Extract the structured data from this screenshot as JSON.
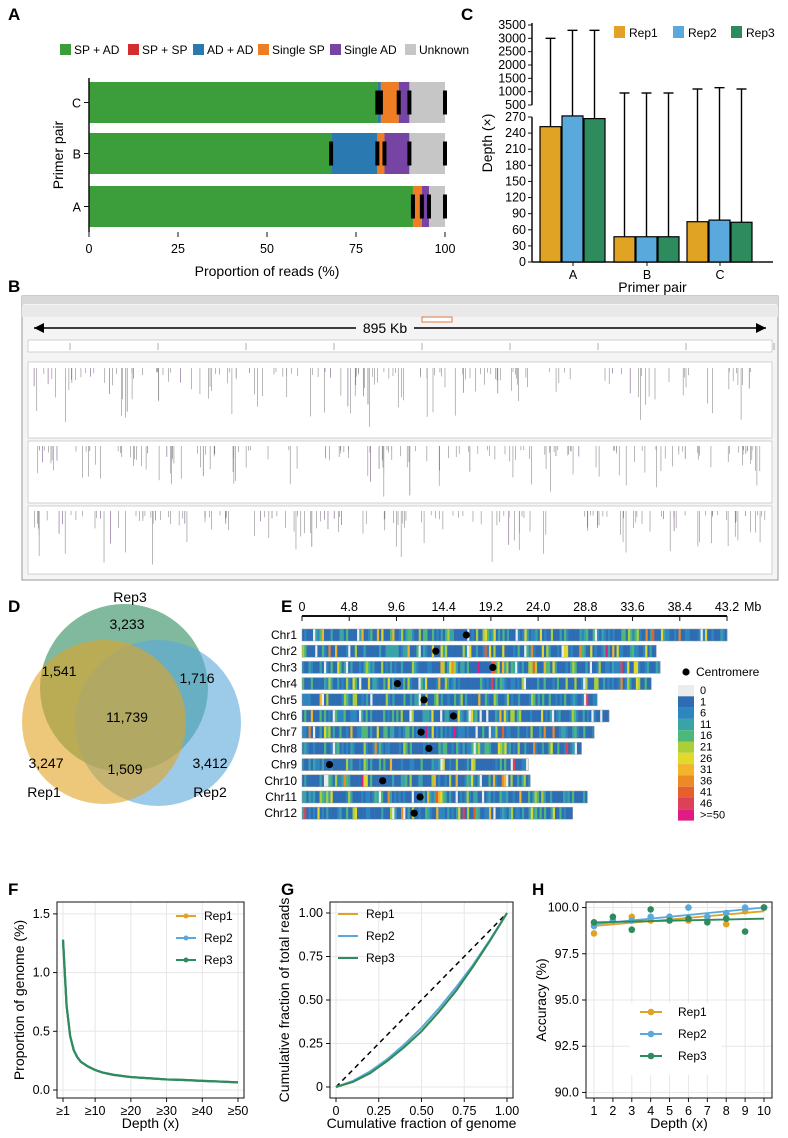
{
  "panel_labels": [
    "A",
    "B",
    "C",
    "D",
    "E",
    "F",
    "G",
    "H"
  ],
  "colors": {
    "sp_ad": "#3b9e3b",
    "sp_sp": "#d42d2d",
    "ad_ad": "#2b79b1",
    "single_sp": "#ee7d23",
    "single_ad": "#7645a3",
    "unknown": "#c6c6c6",
    "rep1": "#e1a323",
    "rep2": "#5aa9dc",
    "rep3": "#2d8b5d"
  },
  "chart_data": [
    {
      "panel": "A",
      "type": "bar",
      "orientation": "horizontal",
      "stacked": true,
      "categories": [
        "C",
        "B",
        "A"
      ],
      "legend": [
        "SP + AD",
        "SP + SP",
        "AD + AD",
        "Single SP",
        "Single AD",
        "Unknown"
      ],
      "series": [
        {
          "name": "SP + AD",
          "color_key": "sp_ad",
          "values": [
            81,
            68,
            91
          ]
        },
        {
          "name": "SP + SP",
          "color_key": "sp_sp",
          "values": [
            0,
            0,
            0
          ]
        },
        {
          "name": "AD + AD",
          "color_key": "ad_ad",
          "values": [
            1,
            13,
            0
          ]
        },
        {
          "name": "Single SP",
          "color_key": "single_sp",
          "values": [
            5,
            2,
            2.5
          ]
        },
        {
          "name": "Single AD",
          "color_key": "single_ad",
          "values": [
            3,
            7,
            2
          ]
        },
        {
          "name": "Unknown",
          "color_key": "unknown",
          "values": [
            10,
            10,
            4.5
          ]
        }
      ],
      "xlabel": "Proportion of reads (%)",
      "ylabel": "Primer pair",
      "xticks": [
        "0",
        "25",
        "50",
        "75",
        "100"
      ],
      "xlim": [
        0,
        100
      ]
    },
    {
      "panel": "B",
      "type": "other",
      "annotation": "895 Kb"
    },
    {
      "panel": "C",
      "type": "bar",
      "categories": [
        "A",
        "B",
        "C"
      ],
      "legend": [
        "Rep1",
        "Rep2",
        "Rep3"
      ],
      "series": [
        {
          "name": "Rep1",
          "color_key": "rep1",
          "values": [
            252,
            47,
            75
          ],
          "error_upper": [
            3000,
            950,
            1100
          ]
        },
        {
          "name": "Rep2",
          "color_key": "rep2",
          "values": [
            272,
            47,
            78
          ],
          "error_upper": [
            3300,
            950,
            1150
          ]
        },
        {
          "name": "Rep3",
          "color_key": "rep3",
          "values": [
            267,
            47,
            74
          ],
          "error_upper": [
            3300,
            950,
            1100
          ]
        }
      ],
      "xlabel": "Primer pair",
      "ylabel": "Depth (×)",
      "yticks_lower": [
        "0",
        "30",
        "60",
        "90",
        "120",
        "150",
        "180",
        "210",
        "240",
        "270"
      ],
      "yticks_upper": [
        "500",
        "1000",
        "1500",
        "2000",
        "2500",
        "3000",
        "3500"
      ],
      "ylim_lower": [
        0,
        270
      ],
      "ylim_upper": [
        500,
        3500
      ]
    },
    {
      "panel": "D",
      "type": "venn",
      "sets": [
        "Rep1",
        "Rep2",
        "Rep3"
      ],
      "regions": {
        "rep3_only": "3,233",
        "rep1_rep3": "1,541",
        "rep2_rep3": "1,716",
        "all": "11,739",
        "rep1_only": "3,247",
        "rep2_only": "3,412",
        "rep1_rep2": "1,509"
      }
    },
    {
      "panel": "E",
      "type": "heatmap",
      "xlabel_unit": "Mb",
      "xticks": [
        "0",
        "4.8",
        "9.6",
        "14.4",
        "19.2",
        "24.0",
        "28.8",
        "33.6",
        "38.4",
        "43.2"
      ],
      "chromosomes": [
        {
          "name": "Chr1",
          "length": 43.2,
          "centromere": 16.7
        },
        {
          "name": "Chr2",
          "length": 36.0,
          "centromere": 13.6
        },
        {
          "name": "Chr3",
          "length": 36.4,
          "centromere": 19.4
        },
        {
          "name": "Chr4",
          "length": 35.5,
          "centromere": 9.7
        },
        {
          "name": "Chr5",
          "length": 30.0,
          "centromere": 12.4
        },
        {
          "name": "Chr6",
          "length": 31.2,
          "centromere": 15.4
        },
        {
          "name": "Chr7",
          "length": 29.7,
          "centromere": 12.1
        },
        {
          "name": "Chr8",
          "length": 28.4,
          "centromere": 12.9
        },
        {
          "name": "Chr9",
          "length": 23.0,
          "centromere": 2.8
        },
        {
          "name": "Chr10",
          "length": 23.2,
          "centromere": 8.2
        },
        {
          "name": "Chr11",
          "length": 29.0,
          "centromere": 12.0
        },
        {
          "name": "Chr12",
          "length": 27.5,
          "centromere": 11.4
        }
      ],
      "legend_title": "Centromere",
      "scale_labels": [
        "0",
        "1",
        "6",
        "11",
        "16",
        "21",
        "26",
        "31",
        "36",
        "41",
        "46",
        ">=50"
      ],
      "scale_colors": [
        "#ececec",
        "#2e6db4",
        "#2e86c1",
        "#3aa3a8",
        "#4db87a",
        "#a9cf3a",
        "#e3d92c",
        "#f2b428",
        "#ee8a26",
        "#e6602e",
        "#df4059",
        "#e01b84"
      ]
    },
    {
      "panel": "F",
      "type": "line",
      "xlabel": "Depth (x)",
      "ylabel": "Proportion of genome (%)",
      "xticks": [
        "≥1",
        "≥10",
        "≥20",
        "≥30",
        "≥40",
        "≥50"
      ],
      "yticks": [
        "0.0",
        "0.5",
        "1.0",
        "1.5"
      ],
      "ylim": [
        0,
        1.55
      ],
      "legend": [
        "Rep1",
        "Rep2",
        "Rep3"
      ],
      "x": [
        1,
        2,
        3,
        4,
        5,
        6,
        8,
        10,
        12,
        15,
        20,
        25,
        30,
        35,
        40,
        45,
        50
      ],
      "series": [
        {
          "name": "Rep1",
          "color_key": "rep1",
          "values": [
            1.27,
            0.72,
            0.46,
            0.34,
            0.28,
            0.24,
            0.2,
            0.17,
            0.15,
            0.13,
            0.11,
            0.1,
            0.09,
            0.085,
            0.078,
            0.072,
            0.065
          ]
        },
        {
          "name": "Rep2",
          "color_key": "rep2",
          "values": [
            1.28,
            0.72,
            0.46,
            0.34,
            0.28,
            0.24,
            0.2,
            0.17,
            0.15,
            0.13,
            0.11,
            0.1,
            0.09,
            0.085,
            0.078,
            0.072,
            0.065
          ]
        },
        {
          "name": "Rep3",
          "color_key": "rep3",
          "values": [
            1.28,
            0.72,
            0.46,
            0.34,
            0.28,
            0.24,
            0.2,
            0.17,
            0.15,
            0.13,
            0.11,
            0.1,
            0.09,
            0.085,
            0.078,
            0.072,
            0.065
          ]
        }
      ]
    },
    {
      "panel": "G",
      "type": "line",
      "xlabel": "Cumulative fraction of genome",
      "ylabel": "Cumulative fraction of total reads",
      "xticks": [
        "0",
        "0.25",
        "0.50",
        "0.75",
        "1.00"
      ],
      "yticks": [
        "0",
        "0.25",
        "0.50",
        "0.75",
        "1.00"
      ],
      "xlim": [
        0,
        1
      ],
      "ylim": [
        0,
        1
      ],
      "legend": [
        "Rep1",
        "Rep2",
        "Rep3"
      ],
      "x": [
        0,
        0.1,
        0.2,
        0.3,
        0.4,
        0.5,
        0.6,
        0.7,
        0.8,
        0.9,
        1.0
      ],
      "series": [
        {
          "name": "Rep1",
          "color_key": "rep1",
          "values": [
            0,
            0.03,
            0.08,
            0.15,
            0.23,
            0.32,
            0.43,
            0.55,
            0.69,
            0.84,
            1.0
          ]
        },
        {
          "name": "Rep2",
          "color_key": "rep2",
          "values": [
            0,
            0.035,
            0.09,
            0.16,
            0.245,
            0.34,
            0.45,
            0.57,
            0.7,
            0.845,
            1.0
          ]
        },
        {
          "name": "Rep3",
          "color_key": "rep3",
          "values": [
            0,
            0.03,
            0.08,
            0.15,
            0.23,
            0.32,
            0.43,
            0.55,
            0.69,
            0.84,
            1.0
          ]
        }
      ],
      "reference": "y = x (dashed)"
    },
    {
      "panel": "H",
      "type": "scatter",
      "xlabel": "Depth (x)",
      "ylabel": "Accuracy (%)",
      "xticks": [
        "1",
        "2",
        "3",
        "4",
        "5",
        "6",
        "7",
        "8",
        "9",
        "10"
      ],
      "yticks": [
        "90.0",
        "92.5",
        "95.0",
        "97.5",
        "100.0"
      ],
      "ylim": [
        89.7,
        100.3
      ],
      "legend": [
        "Rep1",
        "Rep2",
        "Rep3"
      ],
      "x": [
        1,
        2,
        3,
        4,
        5,
        6,
        7,
        8,
        9,
        10
      ],
      "series": [
        {
          "name": "Rep1",
          "color_key": "rep1",
          "values": [
            98.6,
            99.3,
            99.5,
            99.3,
            99.5,
            99.3,
            99.5,
            99.1,
            99.8,
            100.0
          ],
          "fit": [
            99.0,
            99.8
          ]
        },
        {
          "name": "Rep2",
          "color_key": "rep2",
          "values": [
            99.0,
            99.3,
            99.3,
            99.5,
            99.5,
            100.0,
            99.5,
            99.7,
            100.0,
            100.0
          ],
          "fit": [
            99.1,
            100.0
          ]
        },
        {
          "name": "Rep3",
          "color_key": "rep3",
          "values": [
            99.2,
            99.5,
            98.8,
            99.9,
            99.3,
            99.4,
            99.2,
            99.4,
            98.7,
            100.0
          ],
          "fit": [
            99.2,
            99.4
          ]
        }
      ]
    }
  ]
}
